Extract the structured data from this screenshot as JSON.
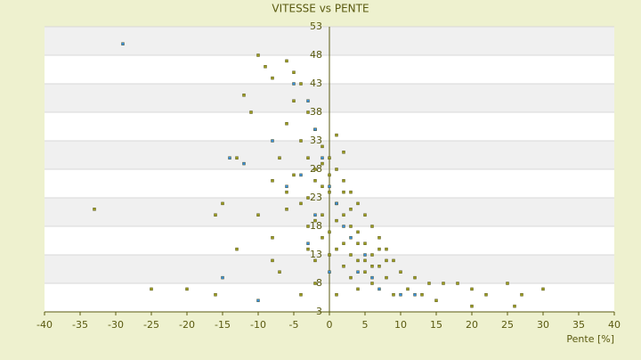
{
  "chart_data": {
    "type": "scatter",
    "title": "VITESSE vs PENTE",
    "x_label": "Pente [%]",
    "xlim": [
      -40,
      40
    ],
    "xticks": [
      -40,
      -35,
      -30,
      -25,
      -20,
      -15,
      -10,
      -5,
      0,
      5,
      10,
      15,
      20,
      25,
      30,
      35,
      40
    ],
    "ylim": [
      3,
      53
    ],
    "yticks": [
      3,
      8,
      13,
      18,
      23,
      28,
      33,
      38,
      43,
      48,
      53
    ],
    "series": [
      {
        "color": "#9a9a20",
        "x": [
          -10,
          -9,
          -8,
          -6,
          -5,
          -4,
          -5,
          -3,
          -6,
          -2,
          -4,
          -1,
          -3,
          0,
          -2,
          1,
          -5,
          2,
          -1,
          0,
          3,
          -3,
          1,
          4,
          -6,
          2,
          5,
          -2,
          3,
          6,
          0,
          4,
          7,
          -1,
          2,
          5,
          8,
          1,
          3,
          6,
          9,
          -8,
          4,
          2,
          7,
          10,
          5,
          12,
          3,
          8,
          14,
          6,
          16,
          11,
          18,
          20,
          25,
          27,
          30,
          22,
          -12,
          -11,
          -13,
          -15,
          -16,
          -13,
          -16,
          -20,
          -25,
          -33,
          -10,
          -8,
          -7,
          -4,
          -2,
          1,
          4,
          9,
          13,
          15,
          20,
          26,
          -7,
          -8,
          -6,
          -4,
          -3,
          -1,
          1,
          2,
          0,
          -1,
          1,
          2,
          -2,
          3,
          4,
          5,
          6,
          7,
          8,
          0,
          -2,
          -3
        ],
        "y": [
          48,
          46,
          44,
          47,
          45,
          43,
          40,
          38,
          36,
          35,
          33,
          32,
          30,
          30,
          28,
          28,
          27,
          26,
          25,
          24,
          24,
          23,
          22,
          22,
          21,
          20,
          20,
          19,
          18,
          18,
          17,
          17,
          16,
          16,
          15,
          15,
          14,
          14,
          13,
          13,
          12,
          12,
          12,
          11,
          11,
          10,
          10,
          9,
          9,
          9,
          8,
          8,
          8,
          7,
          8,
          7,
          8,
          6,
          7,
          6,
          41,
          38,
          30,
          22,
          20,
          14,
          6,
          7,
          7,
          21,
          20,
          16,
          10,
          6,
          8,
          6,
          7,
          6,
          6,
          5,
          4,
          4,
          30,
          26,
          24,
          22,
          18,
          20,
          19,
          24,
          27,
          29,
          34,
          31,
          26,
          21,
          15,
          12,
          11,
          14,
          12,
          13,
          12,
          14
        ]
      },
      {
        "color": "#3b8fd9",
        "x": [
          -29,
          -14,
          -5,
          -3,
          -2,
          -1,
          -4,
          0,
          1,
          -2,
          2,
          3,
          -6,
          -8,
          -15,
          5,
          6,
          7,
          10,
          12,
          -10,
          0,
          4,
          -3,
          -12
        ],
        "y": [
          50,
          30,
          43,
          40,
          35,
          30,
          27,
          25,
          22,
          20,
          18,
          16,
          25,
          33,
          9,
          13,
          9,
          7,
          6,
          6,
          5,
          10,
          10,
          15,
          29
        ]
      }
    ]
  }
}
